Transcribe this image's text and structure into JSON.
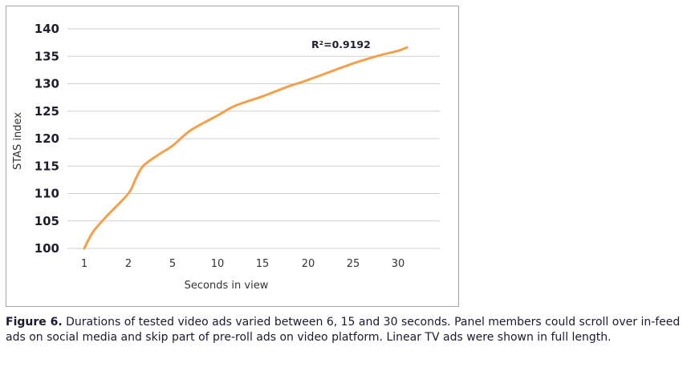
{
  "chart_data": {
    "type": "line",
    "ylabel": "STAS index",
    "xlabel": "Seconds in view",
    "x_ticks": [
      1,
      2,
      5,
      10,
      15,
      20,
      25,
      30
    ],
    "y_ticks": [
      100,
      105,
      110,
      115,
      120,
      125,
      130,
      135,
      140
    ],
    "ylim": [
      100,
      140
    ],
    "grid": "horizontal",
    "series": [
      {
        "color": "#f4a04a",
        "points": [
          {
            "x": 1.0,
            "y": 100.0
          },
          {
            "x": 1.2,
            "y": 103.0
          },
          {
            "x": 1.5,
            "y": 105.8
          },
          {
            "x": 2,
            "y": 110.0
          },
          {
            "x": 2.5,
            "y": 112.7
          },
          {
            "x": 3,
            "y": 115.0
          },
          {
            "x": 4,
            "y": 117.0
          },
          {
            "x": 5,
            "y": 118.7
          },
          {
            "x": 7,
            "y": 121.5
          },
          {
            "x": 10,
            "y": 124.2
          },
          {
            "x": 12,
            "y": 126.0
          },
          {
            "x": 15,
            "y": 127.7
          },
          {
            "x": 18,
            "y": 129.6
          },
          {
            "x": 20,
            "y": 130.7
          },
          {
            "x": 25,
            "y": 133.7
          },
          {
            "x": 28,
            "y": 135.2
          },
          {
            "x": 30,
            "y": 136.0
          },
          {
            "x": 31,
            "y": 136.6
          }
        ]
      }
    ],
    "annotation": "R²=0.9192"
  },
  "caption": {
    "label": "Figure 6.",
    "text": " Durations of tested video ads varied between 6, 15 and 30 seconds. Panel members could scroll over in-feed ads on social media and skip part of pre-roll ads on video platform. Linear TV ads were shown in full length."
  }
}
